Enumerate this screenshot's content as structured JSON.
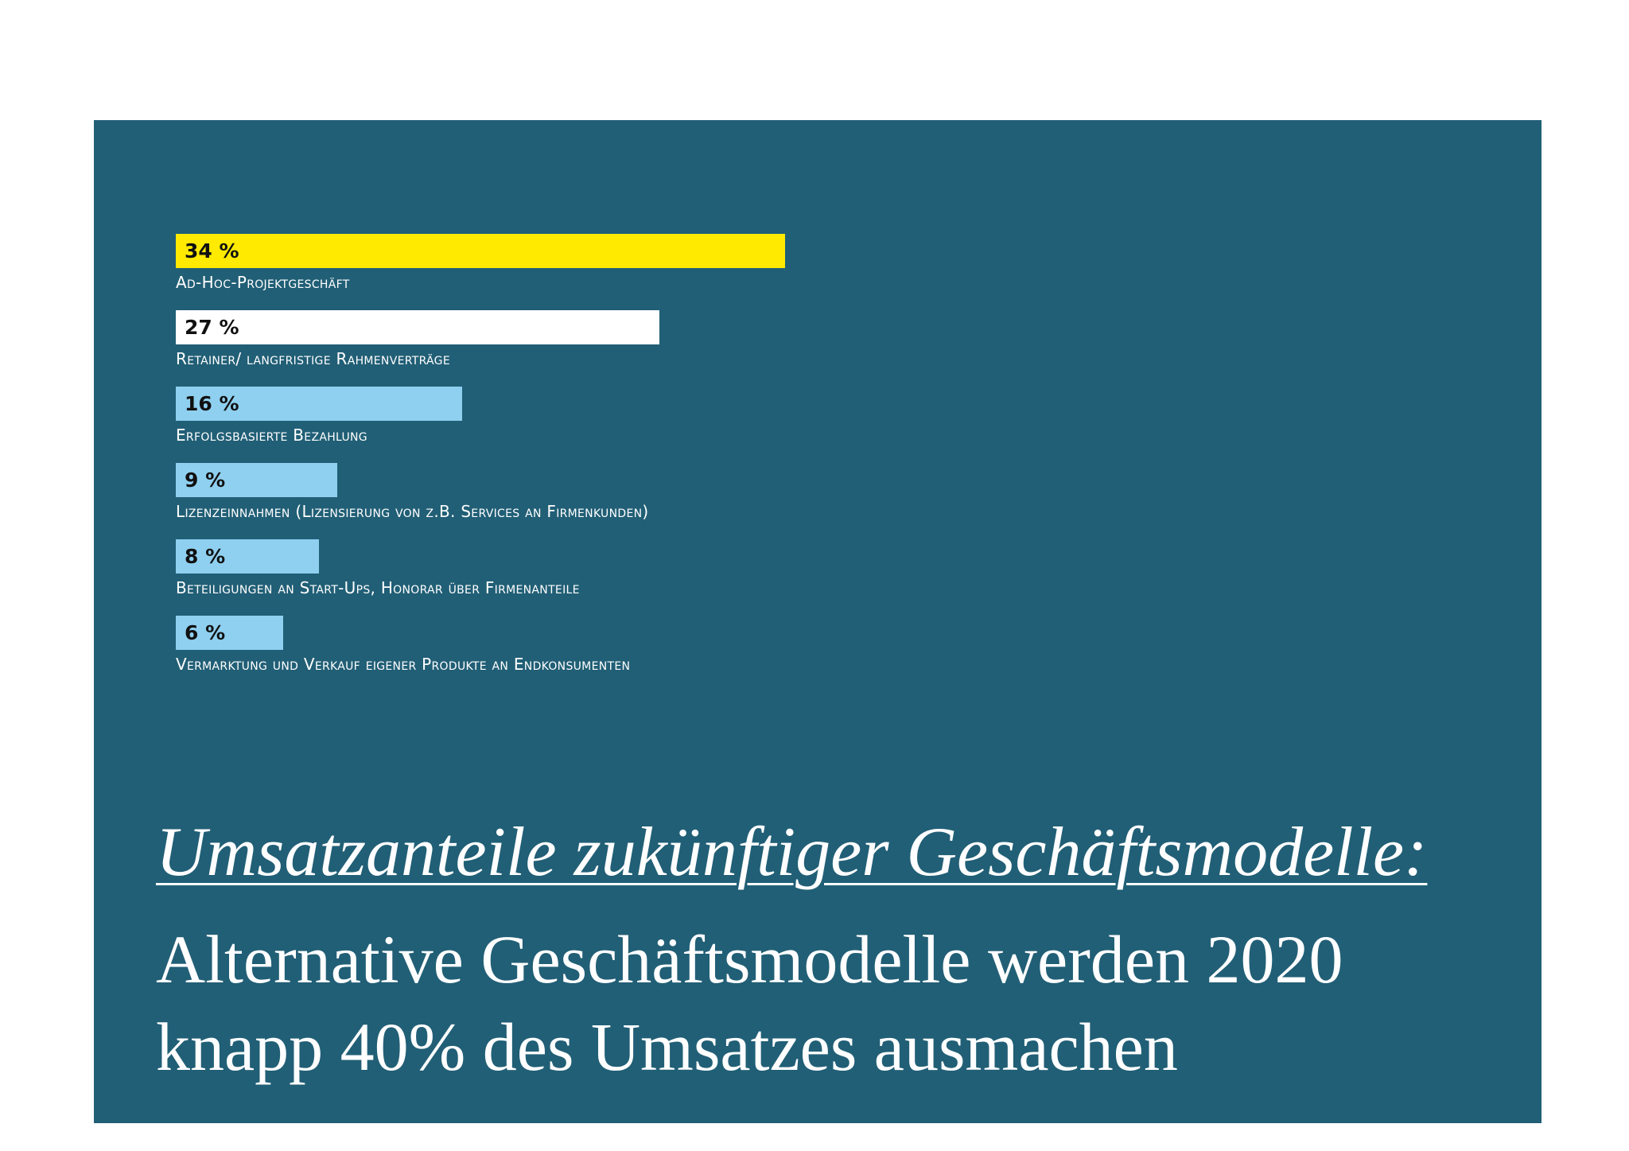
{
  "chart_data": {
    "type": "bar",
    "orientation": "horizontal",
    "categories": [
      "Ad-Hoc-Projektgeschäft",
      "Retainer/ langfristige Rahmenverträge",
      "Erfolgsbasierte Bezahlung",
      "Lizenzeinnahmen (Lizensierung von z.B. Services an Firmenkunden)",
      "Beteiligungen an Start-Ups, Honorar über Firmenanteile",
      "Vermarktung und Verkauf eigener Produkte an Endkonsumenten"
    ],
    "values": [
      34,
      27,
      16,
      9,
      8,
      6
    ],
    "value_labels": [
      "34 %",
      "27 %",
      "16 %",
      "9 %",
      "8 %",
      "6 %"
    ],
    "bar_colors": [
      "#ffea00",
      "#ffffff",
      "#8fd0f0",
      "#8fd0f0",
      "#8fd0f0",
      "#8fd0f0"
    ],
    "xlim": [
      0,
      34
    ],
    "grid": false,
    "title": "Umsatzanteile zukünftiger Geschäftsmodelle:",
    "xlabel": "",
    "ylabel": ""
  },
  "caption": {
    "title": "Umsatzanteile zukünftiger Geschäftsmodelle:",
    "subtitle": "Alternative Geschäftsmodelle werden 2020 knapp 40% des Umsatzes ausmachen"
  },
  "colors": {
    "background": "#215f76",
    "text": "#ffffff",
    "highlight_bar": "#ffea00",
    "secondary_bar": "#ffffff",
    "other_bars": "#8fd0f0"
  }
}
